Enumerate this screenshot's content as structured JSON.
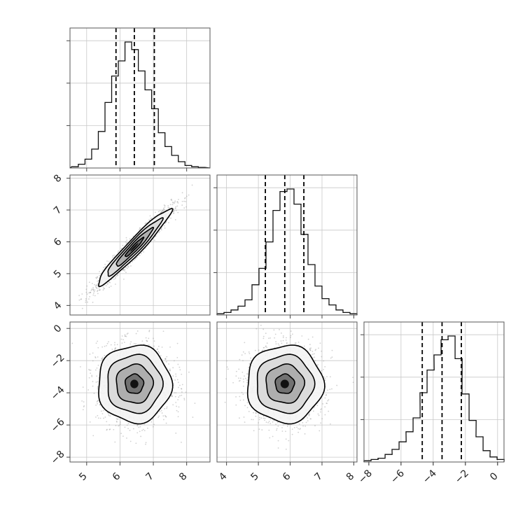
{
  "chart_data": {
    "type": "corner",
    "title": "",
    "parameters": [
      {
        "index": 0,
        "quantiles": [
          5.88,
          6.43,
          7.03
        ],
        "range": [
          4.5,
          8.7
        ],
        "ticks": [
          5,
          6,
          7,
          8
        ],
        "hist_centers": [
          4.65,
          4.85,
          5.05,
          5.25,
          5.45,
          5.65,
          5.85,
          6.05,
          6.25,
          6.45,
          6.65,
          6.85,
          7.05,
          7.25,
          7.45,
          7.65,
          7.85,
          8.05,
          8.25,
          8.45
        ],
        "hist_counts": [
          0.01,
          0.03,
          0.07,
          0.15,
          0.29,
          0.52,
          0.73,
          0.85,
          1.0,
          0.94,
          0.77,
          0.62,
          0.47,
          0.28,
          0.17,
          0.1,
          0.05,
          0.02,
          0.01,
          0.005
        ]
      },
      {
        "index": 1,
        "quantiles": [
          5.22,
          5.83,
          6.43
        ],
        "range": [
          3.7,
          8.1
        ],
        "ticks": [
          4,
          5,
          6,
          7,
          8
        ],
        "hist_centers": [
          3.81,
          4.03,
          4.25,
          4.47,
          4.69,
          4.91,
          5.13,
          5.35,
          5.57,
          5.79,
          6.01,
          6.23,
          6.45,
          6.67,
          6.89,
          7.11,
          7.33,
          7.55,
          7.77,
          7.99
        ],
        "hist_counts": [
          0.01,
          0.02,
          0.04,
          0.07,
          0.12,
          0.24,
          0.37,
          0.58,
          0.83,
          0.98,
          1.0,
          0.88,
          0.64,
          0.4,
          0.23,
          0.13,
          0.08,
          0.04,
          0.02,
          0.01
        ]
      },
      {
        "index": 2,
        "quantiles": [
          -4.68,
          -3.45,
          -2.25
        ],
        "range": [
          -8.3,
          0.4
        ],
        "ticks": [
          -8,
          -6,
          -4,
          -2,
          0
        ],
        "hist_centers": [
          -8.08,
          -7.64,
          -7.21,
          -6.77,
          -6.34,
          -5.9,
          -5.47,
          -5.03,
          -4.6,
          -4.16,
          -3.73,
          -3.29,
          -2.86,
          -2.42,
          -1.99,
          -1.55,
          -1.12,
          -0.68,
          -0.25,
          0.19
        ],
        "hist_counts": [
          0.01,
          0.02,
          0.03,
          0.06,
          0.1,
          0.16,
          0.24,
          0.35,
          0.55,
          0.73,
          0.85,
          0.97,
          1.0,
          0.82,
          0.54,
          0.33,
          0.2,
          0.09,
          0.04,
          0.02
        ]
      }
    ],
    "pairs": [
      {
        "x": 0,
        "y": 1,
        "mean": [
          6.43,
          5.83
        ],
        "sd": [
          0.55,
          0.6
        ],
        "corr": 0.96
      },
      {
        "x": 0,
        "y": 2,
        "mean": [
          6.43,
          -3.45
        ],
        "sd": [
          0.55,
          1.2
        ],
        "corr": 0.0
      },
      {
        "x": 1,
        "y": 2,
        "mean": [
          5.83,
          -3.45
        ],
        "sd": [
          0.6,
          1.2
        ],
        "corr": 0.0
      }
    ],
    "contour_levels_sigma": [
      0.5,
      1.0,
      1.5,
      2.0
    ],
    "grid": true,
    "legend": "none"
  }
}
